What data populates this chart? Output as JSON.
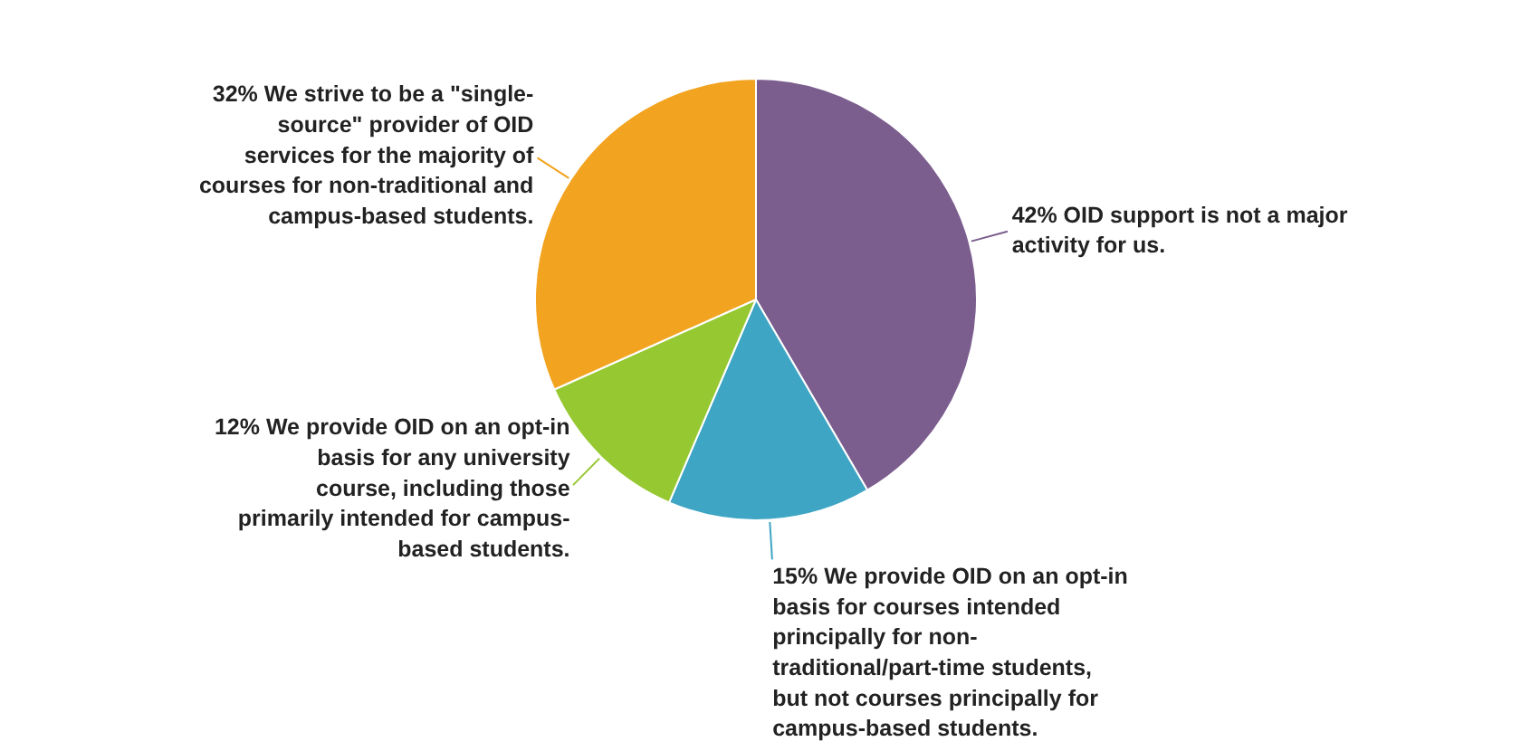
{
  "chart_data": {
    "type": "pie",
    "categories": [
      "OID support is not a major activity for us.",
      "We provide OID on an opt-in basis for courses intended principally for non-traditional/part-time students, but not courses principally for campus-based students.",
      "We provide OID on an opt-in basis for any university course, including those primarily intended for campus-based students.",
      "We strive to be a \"single-source\" provider of OID services for the majority of courses for non-traditional and campus-based students."
    ],
    "values": [
      42,
      15,
      12,
      32
    ],
    "colors": [
      "#7b5e8e",
      "#3fa5c4",
      "#96c832",
      "#f2a31f"
    ],
    "value_labels": [
      "42%",
      "15%",
      "12%",
      "32%"
    ]
  }
}
